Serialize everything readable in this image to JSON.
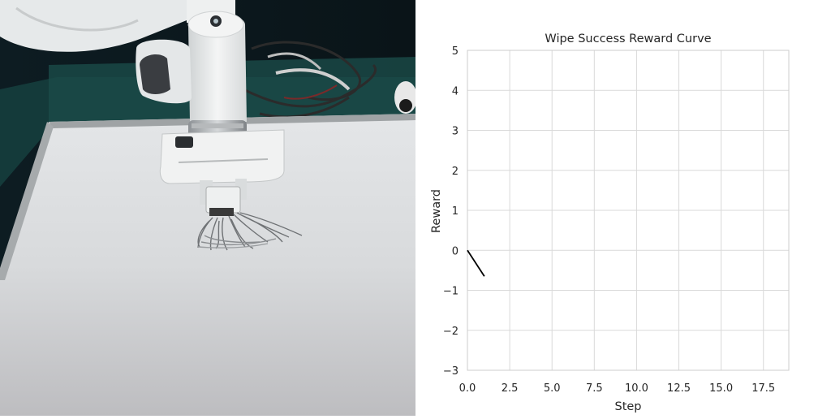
{
  "chart_data": {
    "type": "line",
    "title": "Wipe Success Reward Curve",
    "xlabel": "Step",
    "ylabel": "Reward",
    "xlim": [
      0,
      19
    ],
    "ylim": [
      -3,
      5
    ],
    "x_ticks": [
      "0.0",
      "2.5",
      "5.0",
      "7.5",
      "10.0",
      "12.5",
      "15.0",
      "17.5"
    ],
    "y_ticks": [
      "−3",
      "−2",
      "−1",
      "0",
      "1",
      "2",
      "3",
      "4",
      "5"
    ],
    "grid": true,
    "series": [
      {
        "x": [
          0,
          1
        ],
        "y": [
          0,
          -0.65
        ],
        "color": "#000000"
      }
    ]
  },
  "photo": {
    "icons": [
      "robot-arm-icon",
      "whiteboard-icon",
      "wiping-tool-icon",
      "cables-icon"
    ]
  }
}
